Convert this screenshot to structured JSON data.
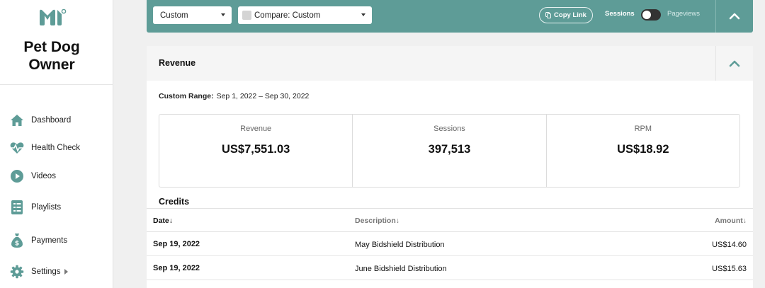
{
  "app": {
    "site_name": "Pet Dog Owner",
    "accent_color": "#5e9c97",
    "logo_icon": "m-leaf-logo-icon"
  },
  "sidebar": {
    "items": [
      {
        "label": "Dashboard",
        "icon": "home-icon"
      },
      {
        "label": "Health Check",
        "icon": "heartbeat-icon"
      },
      {
        "label": "Videos",
        "icon": "play-circle-icon"
      },
      {
        "label": "Playlists",
        "icon": "checklist-icon"
      },
      {
        "label": "Payments",
        "icon": "money-bag-icon"
      },
      {
        "label": "Settings",
        "icon": "gear-icon"
      }
    ]
  },
  "toolbar": {
    "range_select": "Custom",
    "compare_select": "Compare: Custom",
    "copy_link": "Copy Link",
    "toggle_left": "Sessions",
    "toggle_right": "Pageviews"
  },
  "revenue": {
    "title": "Revenue",
    "range_label": "Custom Range:",
    "range_value": "Sep 1, 2022 – Sep 30, 2022",
    "stats": [
      {
        "label": "Revenue",
        "value": "US$7,551.03"
      },
      {
        "label": "Sessions",
        "value": "397,513"
      },
      {
        "label": "RPM",
        "value": "US$18.92"
      }
    ]
  },
  "credits": {
    "title": "Credits",
    "columns": {
      "date": "Date",
      "description": "Description",
      "amount": "Amount"
    },
    "rows": [
      {
        "date": "Sep 19, 2022",
        "description": "May Bidshield Distribution",
        "amount": "US$14.60"
      },
      {
        "date": "Sep 19, 2022",
        "description": "June Bidshield Distribution",
        "amount": "US$15.63"
      }
    ]
  }
}
